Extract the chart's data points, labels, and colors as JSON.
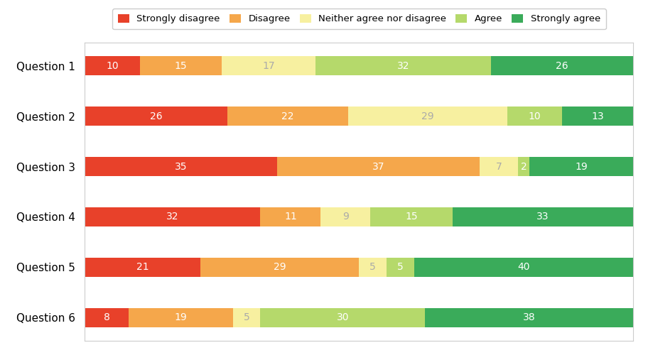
{
  "categories": [
    "Question 1",
    "Question 2",
    "Question 3",
    "Question 4",
    "Question 5",
    "Question 6"
  ],
  "series": [
    {
      "label": "Strongly disagree",
      "color": "#e8412a",
      "values": [
        10,
        26,
        35,
        32,
        21,
        8
      ]
    },
    {
      "label": "Disagree",
      "color": "#f5a74b",
      "values": [
        15,
        22,
        37,
        11,
        29,
        19
      ]
    },
    {
      "label": "Neither agree nor disagree",
      "color": "#f7f0a0",
      "values": [
        17,
        29,
        7,
        9,
        5,
        5
      ]
    },
    {
      "label": "Agree",
      "color": "#b5d96b",
      "values": [
        32,
        10,
        2,
        15,
        5,
        30
      ]
    },
    {
      "label": "Strongly agree",
      "color": "#3aab5a",
      "values": [
        26,
        13,
        19,
        33,
        40,
        38
      ]
    }
  ],
  "figsize": [
    9.19,
    5.0
  ],
  "dpi": 100,
  "bar_height": 0.38,
  "xlim": [
    0,
    100
  ],
  "label_fontsize": 10,
  "legend_fontsize": 9.5,
  "ytick_fontsize": 11,
  "background_color": "#ffffff"
}
